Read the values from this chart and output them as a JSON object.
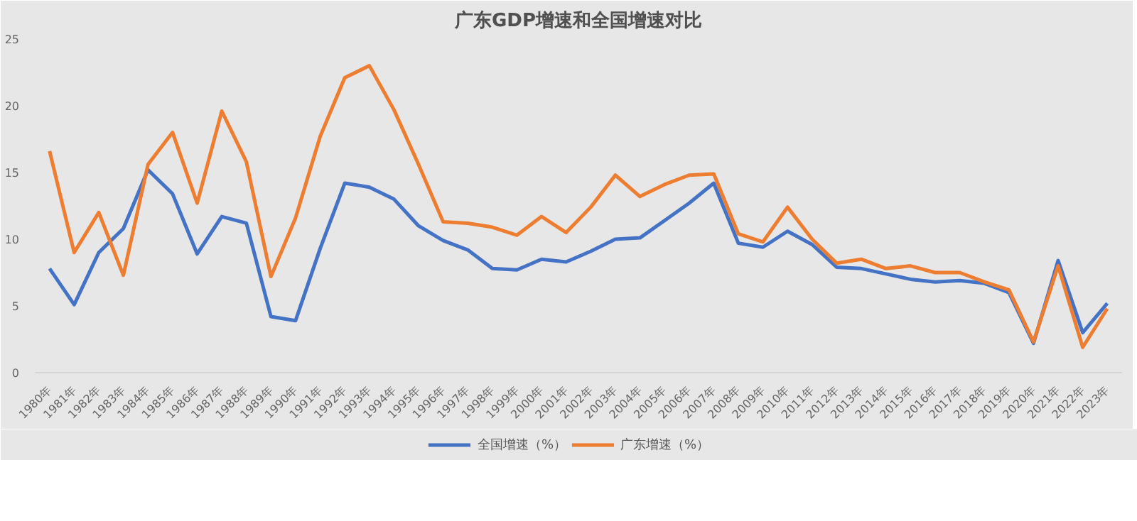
{
  "chart_data": {
    "type": "line",
    "title": "广东GDP增速和全国增速对比",
    "categories": [
      "1980年",
      "1981年",
      "1982年",
      "1983年",
      "1984年",
      "1985年",
      "1986年",
      "1987年",
      "1988年",
      "1989年",
      "1990年",
      "1991年",
      "1992年",
      "1993年",
      "1994年",
      "1995年",
      "1996年",
      "1997年",
      "1998年",
      "1999年",
      "2000年",
      "2001年",
      "2002年",
      "2003年",
      "2004年",
      "2005年",
      "2006年",
      "2007年",
      "2008年",
      "2009年",
      "2010年",
      "2011年",
      "2012年",
      "2013年",
      "2014年",
      "2015年",
      "2016年",
      "2017年",
      "2018年",
      "2019年",
      "2020年",
      "2021年",
      "2022年",
      "2023年"
    ],
    "series": [
      {
        "name": "全国增速（%）",
        "color": "#4472c4",
        "values": [
          7.8,
          5.1,
          9.0,
          10.8,
          15.2,
          13.4,
          8.9,
          11.7,
          11.2,
          4.2,
          3.9,
          9.3,
          14.2,
          13.9,
          13.0,
          11.0,
          9.9,
          9.2,
          7.8,
          7.7,
          8.5,
          8.3,
          9.1,
          10.0,
          10.1,
          11.4,
          12.7,
          14.2,
          9.7,
          9.4,
          10.6,
          9.6,
          7.9,
          7.8,
          7.4,
          7.0,
          6.8,
          6.9,
          6.7,
          6.0,
          2.2,
          8.4,
          3.0,
          5.2
        ]
      },
      {
        "name": "广东增速（%）",
        "color": "#ed7d31",
        "values": [
          16.6,
          9.0,
          12.0,
          7.3,
          15.6,
          18.0,
          12.7,
          19.6,
          15.8,
          7.2,
          11.6,
          17.7,
          22.1,
          23.0,
          19.7,
          15.6,
          11.3,
          11.2,
          10.9,
          10.3,
          11.7,
          10.5,
          12.4,
          14.8,
          13.2,
          14.1,
          14.8,
          14.9,
          10.4,
          9.8,
          12.4,
          10.0,
          8.2,
          8.5,
          7.8,
          8.0,
          7.5,
          7.5,
          6.8,
          6.2,
          2.3,
          8.0,
          1.9,
          4.8
        ]
      }
    ],
    "ylim": [
      0,
      25
    ],
    "yticks": [
      0,
      5,
      10,
      15,
      20,
      25
    ],
    "legend": "bottom",
    "marker": "none",
    "line_style": "solid"
  }
}
